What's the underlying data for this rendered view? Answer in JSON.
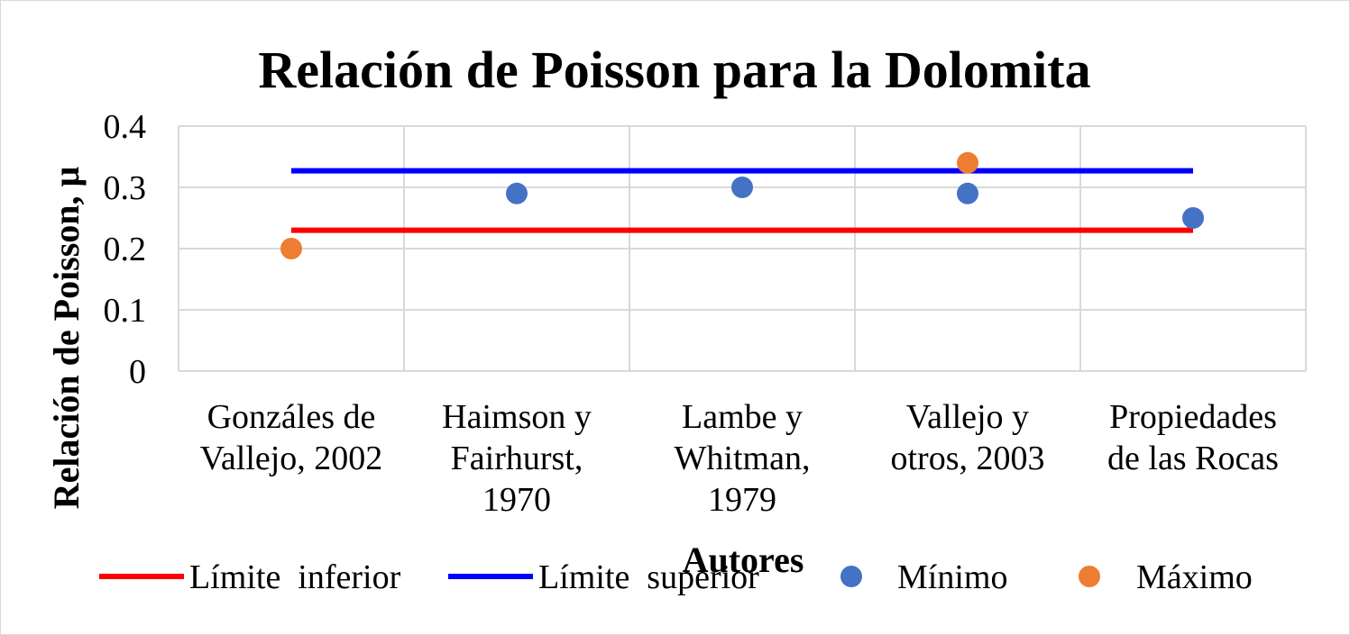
{
  "chart_data": {
    "type": "scatter",
    "title": "Relación de Poisson para la Dolomita",
    "xlabel": "Autores",
    "ylabel": "Relación de Poisson, μ",
    "ylim": [
      0,
      0.4
    ],
    "yticks": [
      "0",
      "0.1",
      "0.2",
      "0.3",
      "0.4"
    ],
    "categories": [
      [
        "Gonzáles de",
        "Vallejo, 2002"
      ],
      [
        "Haimson y",
        "Fairhurst,",
        "1970"
      ],
      [
        "Lambe y",
        "Whitman,",
        "1979"
      ],
      [
        "Vallejo y",
        "otros, 2003"
      ],
      [
        "Propiedades",
        "de las Rocas"
      ]
    ],
    "grid": true,
    "legend_position": "bottom",
    "series": [
      {
        "name": "Límite  inferior",
        "kind": "line",
        "color": "#ff0000",
        "values": [
          0.23,
          0.23,
          0.23,
          0.23,
          0.23
        ]
      },
      {
        "name": "Límite  superior",
        "kind": "line",
        "color": "#0000ff",
        "values": [
          0.327,
          0.327,
          0.327,
          0.327,
          0.327
        ]
      },
      {
        "name": "Mínimo",
        "kind": "marker",
        "color": "#4472c4",
        "values": [
          null,
          0.29,
          0.3,
          0.29,
          0.25
        ]
      },
      {
        "name": "Máximo",
        "kind": "marker",
        "color": "#ed7d31",
        "values": [
          0.2,
          null,
          null,
          0.34,
          null
        ]
      }
    ]
  }
}
